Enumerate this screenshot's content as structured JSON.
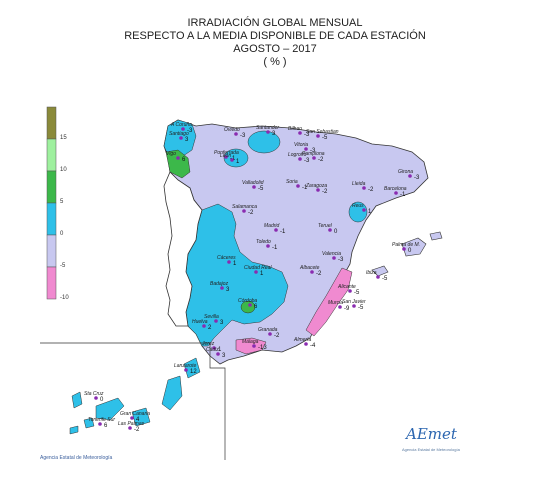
{
  "header": {
    "line1": "IRRADIACIÓN GLOBAL MENSUAL",
    "line2": "RESPECTO A LA MEDIA DISPONIBLE DE CADA ESTACIÓN",
    "line3": "AGOSTO – 2017",
    "line4": "( % )"
  },
  "legend": {
    "colors": [
      "#8a8a3a",
      "#9ef09e",
      "#3cb84a",
      "#2ec0e8",
      "#c8c8f0",
      "#f08ad0"
    ],
    "labels": [
      "15",
      "10",
      "5",
      "0",
      "-5",
      "-10"
    ]
  },
  "stations": [
    {
      "name": "A Coruña",
      "value": "-3"
    },
    {
      "name": "Santiago",
      "value": "3"
    },
    {
      "name": "Vigo",
      "value": "6"
    },
    {
      "name": "Oviedo",
      "value": "-3"
    },
    {
      "name": "Santander",
      "value": "3"
    },
    {
      "name": "Bilbao",
      "value": "-3"
    },
    {
      "name": "San Sebastian",
      "value": "-5"
    },
    {
      "name": "Vitoria",
      "value": "-3"
    },
    {
      "name": "Pamplona",
      "value": "-2"
    },
    {
      "name": "Ponferrada",
      "value": "-1"
    },
    {
      "name": "León",
      "value": "1"
    },
    {
      "name": "Logroño",
      "value": "-3"
    },
    {
      "name": "Girona",
      "value": "-3"
    },
    {
      "name": "Valladolid",
      "value": "-5"
    },
    {
      "name": "Soria",
      "value": "-1"
    },
    {
      "name": "Zaragoza",
      "value": "-2"
    },
    {
      "name": "Lleida",
      "value": "-2"
    },
    {
      "name": "Barcelona",
      "value": "-1"
    },
    {
      "name": "Reus",
      "value": "1"
    },
    {
      "name": "Salamanca",
      "value": "-2"
    },
    {
      "name": "Madrid",
      "value": "-1"
    },
    {
      "name": "Teruel",
      "value": "0"
    },
    {
      "name": "Toledo",
      "value": "-1"
    },
    {
      "name": "Palma de M.",
      "value": "0"
    },
    {
      "name": "Cáceres",
      "value": "1"
    },
    {
      "name": "Valencia",
      "value": "-3"
    },
    {
      "name": "Ciudad Real",
      "value": "1"
    },
    {
      "name": "Albacete",
      "value": "-2"
    },
    {
      "name": "Ibiza",
      "value": "-5"
    },
    {
      "name": "Badajoz",
      "value": "3"
    },
    {
      "name": "Alicante",
      "value": "-5"
    },
    {
      "name": "Murcia",
      "value": "-9"
    },
    {
      "name": "San Javier",
      "value": "-5"
    },
    {
      "name": "Córdoba",
      "value": "6"
    },
    {
      "name": "Huelva",
      "value": "2"
    },
    {
      "name": "Sevilla",
      "value": "3"
    },
    {
      "name": "Granada",
      "value": "-2"
    },
    {
      "name": "Almería",
      "value": "-4"
    },
    {
      "name": "Jerez",
      "value": "1"
    },
    {
      "name": "Cádiz",
      "value": "3"
    },
    {
      "name": "Málaga",
      "value": "-13"
    },
    {
      "name": "Lanzarote",
      "value": "12"
    },
    {
      "name": "Sta Cruz",
      "value": "0"
    },
    {
      "name": "Tenerife Sur",
      "value": "6"
    },
    {
      "name": "Gran Canaria",
      "value": "4"
    },
    {
      "name": "Las Palmas",
      "value": "-2"
    }
  ],
  "footer": "Agencia Estatal de Meteorología",
  "logo": {
    "text": "AEmet",
    "subtitle": "Agencia Estatal de Meteorología"
  }
}
